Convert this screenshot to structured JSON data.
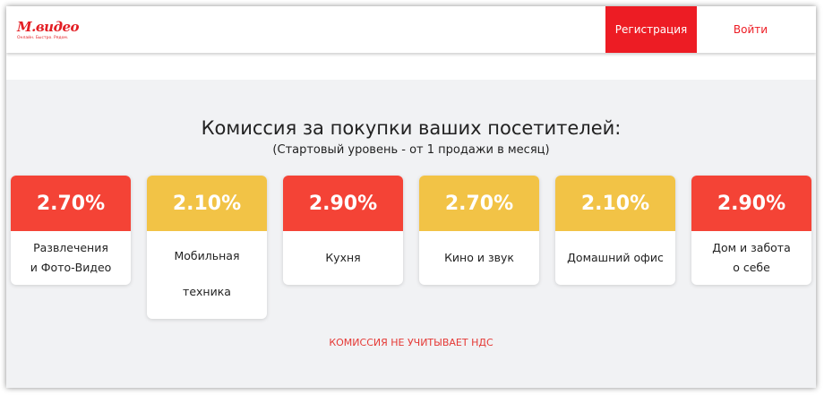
{
  "header": {
    "logo": "М.видео",
    "logo_tagline": "Онлайн. Быстро. Рядом.",
    "register": "Регистрация",
    "login": "Войти"
  },
  "main": {
    "title": "Комиссия за покупки ваших посетителей:",
    "subtitle": "(Стартовый уровень - от 1 продажи в месяц)",
    "cards": [
      {
        "rate": "2.70%",
        "line1": "Развлечения",
        "line2": "и Фото-Видео",
        "color": "#f44336"
      },
      {
        "rate": "2.10%",
        "line1": "Мобильная",
        "line2": "техника",
        "color": "#f2c346"
      },
      {
        "rate": "2.90%",
        "line1": "Кухня",
        "line2": "",
        "color": "#f44336"
      },
      {
        "rate": "2.70%",
        "line1": "Кино и звук",
        "line2": "",
        "color": "#f2c346"
      },
      {
        "rate": "2.10%",
        "line1": "Домашний офис",
        "line2": "",
        "color": "#f2c346"
      },
      {
        "rate": "2.90%",
        "line1": "Дом и забота",
        "line2": "о себе",
        "color": "#f44336"
      }
    ],
    "note": "КОМИССИЯ НЕ УЧИТЫВАЕТ НДС"
  }
}
